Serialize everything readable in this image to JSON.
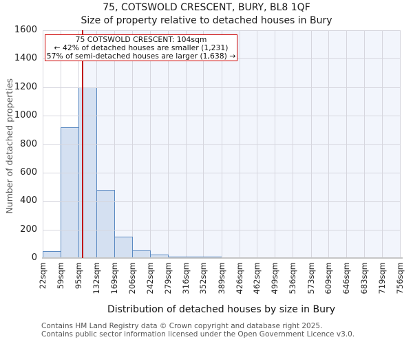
{
  "title": "75, COTSWOLD CRESCENT, BURY, BL8 1QF",
  "subtitle": "Size of property relative to detached houses in Bury",
  "annotation": {
    "line1": "75 COTSWOLD CRESCENT: 104sqm",
    "line2": "← 42% of detached houses are smaller (1,231)",
    "line3": "57% of semi-detached houses are larger (1,638) →"
  },
  "chart_data": {
    "type": "bar",
    "title": "75, COTSWOLD CRESCENT, BURY, BL8 1QF",
    "subtitle": "Size of property relative to detached houses in Bury",
    "xlabel": "Distribution of detached houses by size in Bury",
    "ylabel": "Number of detached properties",
    "ylim": [
      0,
      1600
    ],
    "y_ticks": [
      0,
      200,
      400,
      600,
      800,
      1000,
      1200,
      1400,
      1600
    ],
    "x_unit": "sqm",
    "bin_edges": [
      22,
      59,
      95,
      132,
      169,
      206,
      242,
      279,
      316,
      352,
      389,
      426,
      462,
      499,
      536,
      573,
      609,
      646,
      683,
      719,
      756
    ],
    "x_tick_labels": [
      "22sqm",
      "59sqm",
      "95sqm",
      "132sqm",
      "169sqm",
      "206sqm",
      "242sqm",
      "279sqm",
      "316sqm",
      "352sqm",
      "389sqm",
      "426sqm",
      "462sqm",
      "499sqm",
      "536sqm",
      "573sqm",
      "609sqm",
      "646sqm",
      "683sqm",
      "719sqm",
      "756sqm"
    ],
    "values": [
      50,
      920,
      1200,
      480,
      150,
      55,
      25,
      10,
      5,
      10,
      0,
      0,
      0,
      0,
      0,
      0,
      0,
      0,
      0,
      0
    ],
    "marker": {
      "value_sqm": 104,
      "shaded_side": "right"
    },
    "grid": true,
    "legend_position": "none",
    "colors": {
      "bar_fill": "#d4e0f1",
      "bar_edge": "#5b8ac2",
      "marker_line": "#c00000",
      "annotation_border": "#cc0000",
      "shade_right_of_marker": "#f2f5fc",
      "gridline": "#d6d6de",
      "axis_line": "#c6c6c6"
    }
  },
  "footer": {
    "line1": "Contains HM Land Registry data © Crown copyright and database right 2025.",
    "line2": "Contains public sector information licensed under the Open Government Licence v3.0."
  }
}
